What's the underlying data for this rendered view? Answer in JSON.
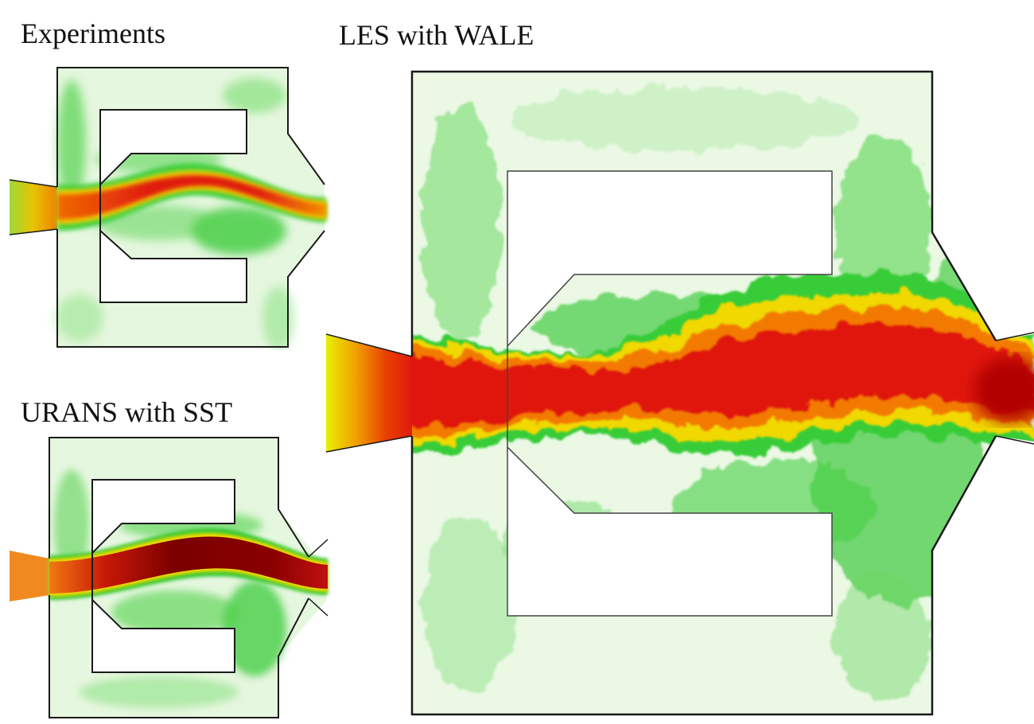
{
  "panels": {
    "experiments": {
      "label": "Experiments"
    },
    "les": {
      "label": "LES with WALE"
    },
    "urans": {
      "label": "URANS with SST"
    }
  },
  "colors": {
    "background_low": "#e6f7e0",
    "mid": "#33d033",
    "high_yellow": "#f0e600",
    "high_orange": "#f07a00",
    "high_red": "#e01010",
    "peak_darkred": "#8a0000",
    "wall": "#1a1a1a"
  }
}
